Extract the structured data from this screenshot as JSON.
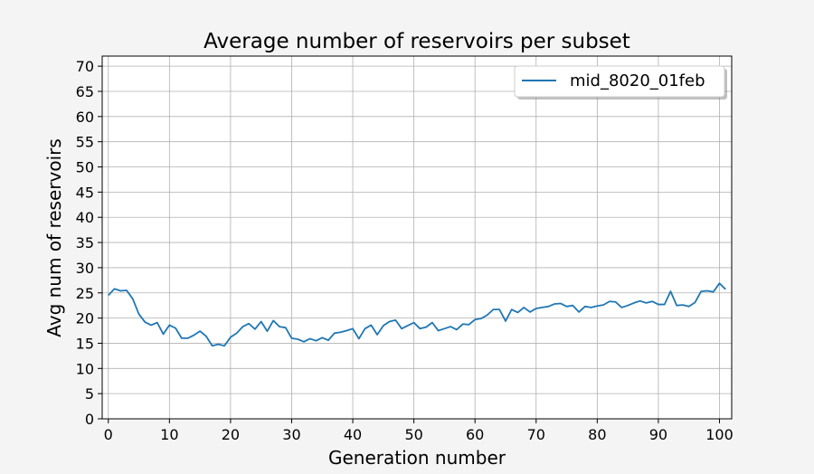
{
  "chart_data": {
    "type": "line",
    "title": "Average number of reservoirs per subset",
    "xlabel": "Generation number",
    "ylabel": "Avg num of reservoirs",
    "xlim": [
      -1,
      102
    ],
    "ylim": [
      0,
      72
    ],
    "xticks": [
      0,
      10,
      20,
      30,
      40,
      50,
      60,
      70,
      80,
      90,
      100
    ],
    "yticks": [
      0,
      5,
      10,
      15,
      20,
      25,
      30,
      35,
      40,
      45,
      50,
      55,
      60,
      65,
      70
    ],
    "grid": true,
    "legend_position": "upper-right",
    "series": [
      {
        "name": "mid_8020_01feb",
        "color": "#1f77b4",
        "x": [
          0,
          1,
          2,
          3,
          4,
          5,
          6,
          7,
          8,
          9,
          10,
          11,
          12,
          13,
          14,
          15,
          16,
          17,
          18,
          19,
          20,
          21,
          22,
          23,
          24,
          25,
          26,
          27,
          28,
          29,
          30,
          31,
          32,
          33,
          34,
          35,
          36,
          37,
          38,
          39,
          40,
          41,
          42,
          43,
          44,
          45,
          46,
          47,
          48,
          49,
          50,
          51,
          52,
          53,
          54,
          55,
          56,
          57,
          58,
          59,
          60,
          61,
          62,
          63,
          64,
          65,
          66,
          67,
          68,
          69,
          70,
          71,
          72,
          73,
          74,
          75,
          76,
          77,
          78,
          79,
          80,
          81,
          82,
          83,
          84,
          85,
          86,
          87,
          88,
          89,
          90,
          91,
          92,
          93,
          94,
          95,
          96,
          97,
          98,
          99,
          100,
          101
        ],
        "values": [
          24.5,
          25.8,
          25.4,
          25.5,
          23.8,
          20.8,
          19.2,
          18.6,
          19.1,
          16.8,
          18.6,
          18,
          16,
          16,
          16.6,
          17.4,
          16.4,
          14.5,
          14.8,
          14.5,
          16.2,
          17,
          18.3,
          18.9,
          17.8,
          19.3,
          17.4,
          19.5,
          18.3,
          18.1,
          16,
          15.8,
          15.3,
          15.9,
          15.5,
          16.1,
          15.6,
          17,
          17.2,
          17.5,
          17.9,
          15.9,
          17.9,
          18.6,
          16.7,
          18.5,
          19.3,
          19.6,
          17.9,
          18.5,
          19.1,
          17.9,
          18.2,
          19.1,
          17.5,
          17.9,
          18.3,
          17.7,
          18.8,
          18.7,
          19.7,
          19.9,
          20.6,
          21.7,
          21.7,
          19.4,
          21.7,
          21.1,
          22.1,
          21.2,
          21.9,
          22.1,
          22.3,
          22.8,
          22.9,
          22.3,
          22.5,
          21.2,
          22.3,
          22.1,
          22.4,
          22.6,
          23.3,
          23.2,
          22.1,
          22.5,
          23,
          23.4,
          23,
          23.3,
          22.7,
          22.7,
          25.3,
          22.5,
          22.6,
          22.3,
          23.1,
          25.3,
          25.4,
          25.2,
          26.9,
          25.7
        ]
      }
    ]
  }
}
